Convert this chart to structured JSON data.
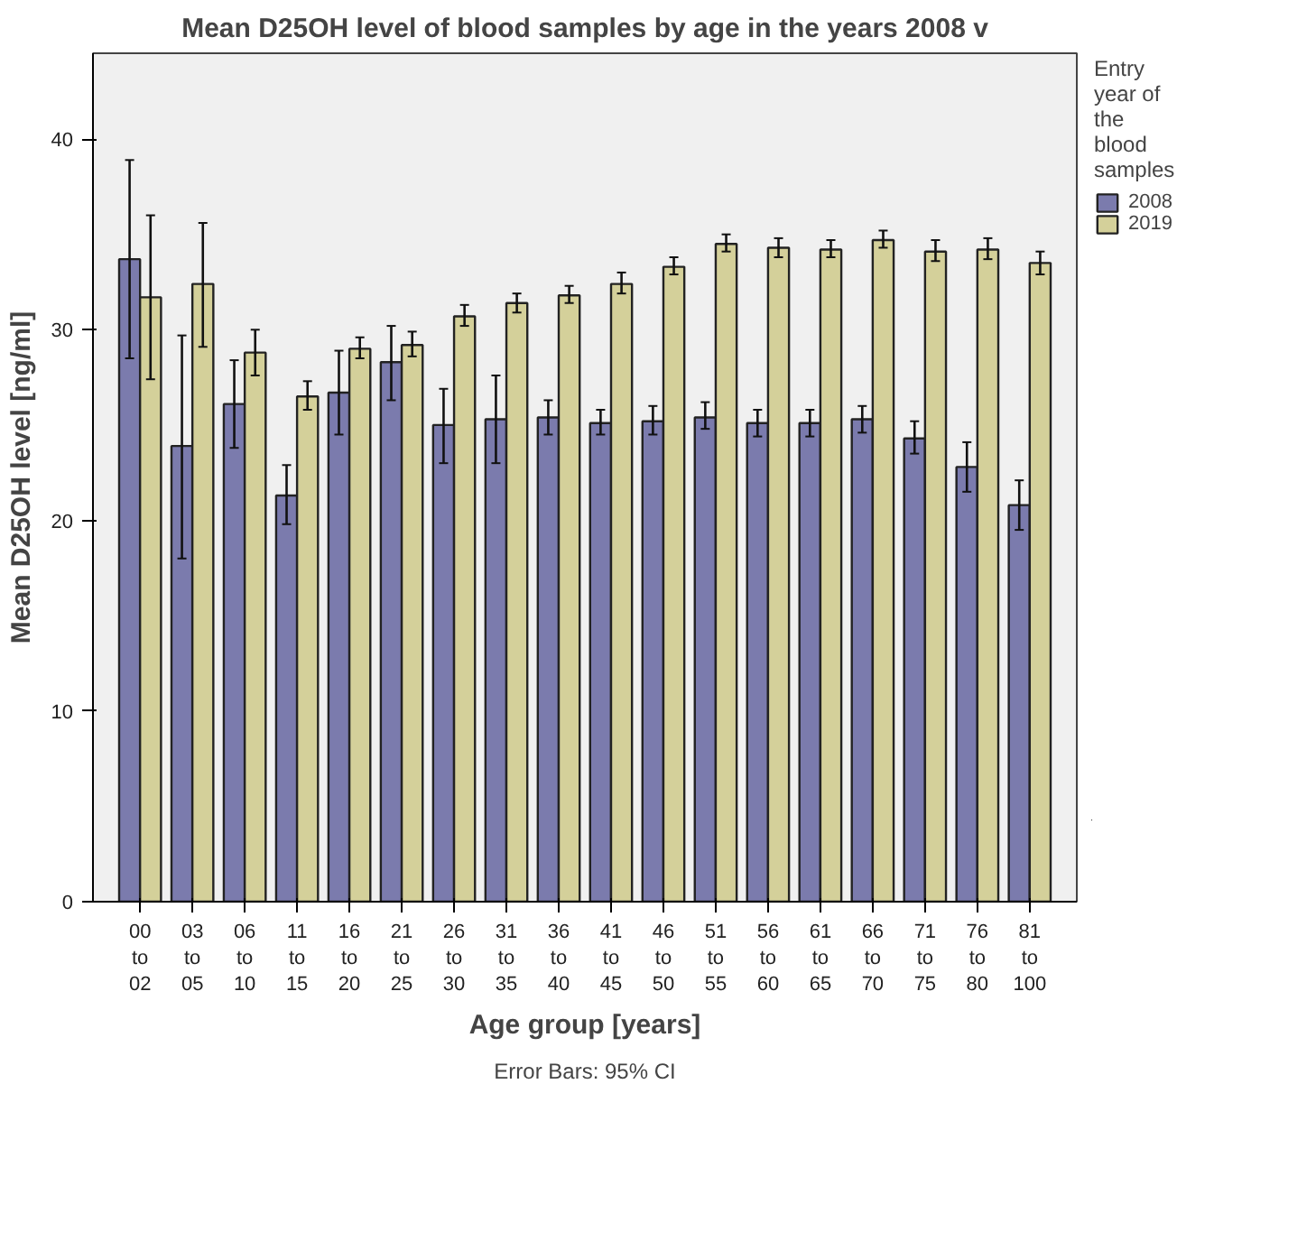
{
  "chart_data": {
    "type": "bar",
    "title": "Mean D25OH level of blood samples by age in the years 2008 v",
    "xlabel": "Age group [years]",
    "ylabel": "Mean D25OH level [ng/ml]",
    "legend_title": "Entry year of the blood samples",
    "categories": [
      "00 to 02",
      "03 to 05",
      "06 to 10",
      "11 to 15",
      "16 to 20",
      "21 to 25",
      "26 to 30",
      "31 to 35",
      "36 to 40",
      "41 to 45",
      "46 to 50",
      "51 to 55",
      "56 to 60",
      "61 to 65",
      "66 to 70",
      "71 to 75",
      "76 to 80",
      "81 to 100"
    ],
    "series": [
      {
        "name": "2008",
        "color": "#7b7bad",
        "values": [
          33.7,
          23.9,
          26.1,
          21.3,
          26.7,
          28.3,
          25.0,
          25.3,
          25.4,
          25.1,
          25.2,
          25.4,
          25.1,
          25.1,
          25.3,
          24.3,
          22.8,
          20.8
        ],
        "errors": [
          [
            28.5,
            38.9
          ],
          [
            18.0,
            29.7
          ],
          [
            23.8,
            28.4
          ],
          [
            19.8,
            22.9
          ],
          [
            24.5,
            28.9
          ],
          [
            26.3,
            30.2
          ],
          [
            23.0,
            26.9
          ],
          [
            23.0,
            27.6
          ],
          [
            24.5,
            26.3
          ],
          [
            24.5,
            25.8
          ],
          [
            24.5,
            26.0
          ],
          [
            24.8,
            26.2
          ],
          [
            24.4,
            25.8
          ],
          [
            24.4,
            25.8
          ],
          [
            24.6,
            26.0
          ],
          [
            23.5,
            25.2
          ],
          [
            21.5,
            24.1
          ],
          [
            19.5,
            22.1
          ]
        ]
      },
      {
        "name": "2019",
        "color": "#d4d09a",
        "values": [
          31.7,
          32.4,
          28.8,
          26.5,
          29.0,
          29.2,
          30.7,
          31.4,
          31.8,
          32.4,
          33.3,
          34.5,
          34.3,
          34.2,
          34.7,
          34.1,
          34.2,
          33.5
        ],
        "errors": [
          [
            27.4,
            36.0
          ],
          [
            29.1,
            35.6
          ],
          [
            27.6,
            30.0
          ],
          [
            25.8,
            27.3
          ],
          [
            28.5,
            29.6
          ],
          [
            28.6,
            29.9
          ],
          [
            30.2,
            31.3
          ],
          [
            30.9,
            31.9
          ],
          [
            31.4,
            32.3
          ],
          [
            31.9,
            33.0
          ],
          [
            32.9,
            33.8
          ],
          [
            34.1,
            35.0
          ],
          [
            33.8,
            34.8
          ],
          [
            33.8,
            34.7
          ],
          [
            34.3,
            35.2
          ],
          [
            33.6,
            34.7
          ],
          [
            33.7,
            34.8
          ],
          [
            32.9,
            34.1
          ]
        ]
      }
    ],
    "ylim": [
      0,
      44.5
    ],
    "yticks": [
      0,
      10,
      20,
      30,
      40
    ],
    "grid": false,
    "legend": "right",
    "annotations": [
      "Error Bars: 95% CI"
    ]
  }
}
